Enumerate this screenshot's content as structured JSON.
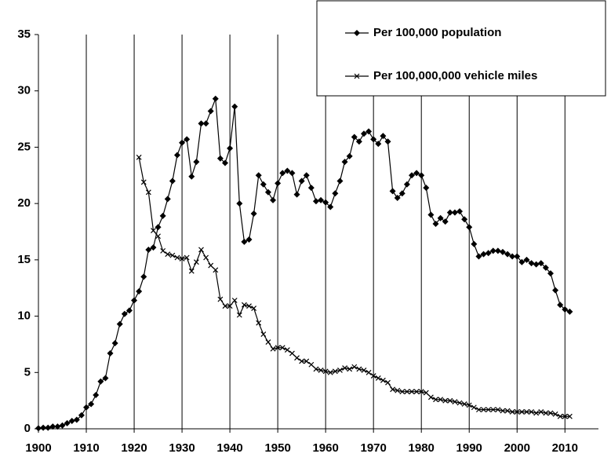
{
  "chart_data": {
    "type": "line",
    "x": [
      1900,
      1901,
      1902,
      1903,
      1904,
      1905,
      1906,
      1907,
      1908,
      1909,
      1910,
      1911,
      1912,
      1913,
      1914,
      1915,
      1916,
      1917,
      1918,
      1919,
      1920,
      1921,
      1922,
      1923,
      1924,
      1925,
      1926,
      1927,
      1928,
      1929,
      1930,
      1931,
      1932,
      1933,
      1934,
      1935,
      1936,
      1937,
      1938,
      1939,
      1940,
      1941,
      1942,
      1943,
      1944,
      1945,
      1946,
      1947,
      1948,
      1949,
      1950,
      1951,
      1952,
      1953,
      1954,
      1955,
      1956,
      1957,
      1958,
      1959,
      1960,
      1961,
      1962,
      1963,
      1964,
      1965,
      1966,
      1967,
      1968,
      1969,
      1970,
      1971,
      1972,
      1973,
      1974,
      1975,
      1976,
      1977,
      1978,
      1979,
      1980,
      1981,
      1982,
      1983,
      1984,
      1985,
      1986,
      1987,
      1988,
      1989,
      1990,
      1991,
      1992,
      1993,
      1994,
      1995,
      1996,
      1997,
      1998,
      1999,
      2000,
      2001,
      2002,
      2003,
      2004,
      2005,
      2006,
      2007,
      2008,
      2009,
      2010,
      2011
    ],
    "series": [
      {
        "name": "Per 100,000 population",
        "color": "#000000",
        "marker": "diamond",
        "values": [
          0.05,
          0.1,
          0.1,
          0.2,
          0.2,
          0.3,
          0.5,
          0.7,
          0.8,
          1.2,
          1.9,
          2.2,
          3.0,
          4.2,
          4.5,
          6.7,
          7.6,
          9.3,
          10.2,
          10.5,
          11.4,
          12.2,
          13.5,
          15.9,
          16.1,
          17.9,
          18.9,
          20.4,
          22.0,
          24.3,
          25.4,
          25.7,
          22.4,
          23.7,
          27.1,
          27.1,
          28.2,
          29.3,
          24.0,
          23.6,
          24.9,
          28.6,
          20.0,
          16.6,
          16.8,
          19.1,
          22.5,
          21.7,
          21.0,
          20.3,
          21.8,
          22.7,
          22.9,
          22.7,
          20.8,
          22.0,
          22.5,
          21.4,
          20.2,
          20.3,
          20.1,
          19.7,
          20.9,
          22.0,
          23.7,
          24.2,
          25.9,
          25.5,
          26.2,
          26.4,
          25.7,
          25.3,
          26.0,
          25.5,
          21.1,
          20.5,
          20.9,
          21.7,
          22.5,
          22.7,
          22.5,
          21.4,
          19.0,
          18.2,
          18.7,
          18.4,
          19.2,
          19.2,
          19.3,
          18.6,
          17.9,
          16.4,
          15.3,
          15.5,
          15.6,
          15.8,
          15.8,
          15.7,
          15.5,
          15.3,
          15.3,
          14.8,
          15.0,
          14.7,
          14.6,
          14.7,
          14.3,
          13.8,
          12.3,
          11.0,
          10.6,
          10.4
        ]
      },
      {
        "name": "Per 100,000,000 vehicle miles",
        "color": "#000000",
        "marker": "x",
        "values": [
          null,
          null,
          null,
          null,
          null,
          null,
          null,
          null,
          null,
          null,
          null,
          null,
          null,
          null,
          null,
          null,
          null,
          null,
          null,
          null,
          null,
          24.1,
          21.9,
          21.0,
          17.6,
          17.1,
          15.8,
          15.5,
          15.4,
          15.2,
          15.1,
          15.2,
          14.0,
          14.8,
          15.9,
          15.2,
          14.5,
          14.1,
          11.5,
          10.9,
          10.9,
          11.4,
          10.1,
          11.0,
          10.9,
          10.7,
          9.4,
          8.4,
          7.7,
          7.1,
          7.2,
          7.2,
          7.0,
          6.7,
          6.3,
          6.0,
          6.0,
          5.7,
          5.3,
          5.2,
          5.1,
          5.0,
          5.1,
          5.2,
          5.4,
          5.3,
          5.5,
          5.3,
          5.2,
          5.0,
          4.7,
          4.5,
          4.3,
          4.1,
          3.5,
          3.4,
          3.3,
          3.3,
          3.3,
          3.3,
          3.3,
          3.2,
          2.8,
          2.6,
          2.6,
          2.5,
          2.5,
          2.4,
          2.3,
          2.2,
          2.1,
          1.9,
          1.7,
          1.7,
          1.7,
          1.7,
          1.7,
          1.6,
          1.6,
          1.5,
          1.5,
          1.5,
          1.5,
          1.5,
          1.4,
          1.5,
          1.4,
          1.4,
          1.3,
          1.1,
          1.1,
          1.1
        ]
      }
    ],
    "xlim": [
      1900,
      2017
    ],
    "xticks": [
      1900,
      1910,
      1920,
      1930,
      1940,
      1950,
      1960,
      1970,
      1980,
      1990,
      2000,
      2010
    ],
    "ylim": [
      0,
      35
    ],
    "yticks": [
      0,
      5,
      10,
      15,
      20,
      25,
      30,
      35
    ],
    "grid": "x",
    "legend": "upper right"
  }
}
